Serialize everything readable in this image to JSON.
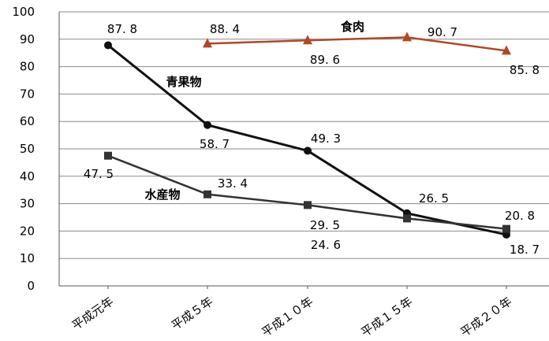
{
  "chart_data": {
    "type": "line",
    "categories": [
      "平成元年",
      "平成５年",
      "平成１０年",
      "平成１５年",
      "平成２０年"
    ],
    "ylim": [
      0,
      100
    ],
    "yticks": [
      0,
      10,
      20,
      30,
      40,
      50,
      60,
      70,
      80,
      90,
      100
    ],
    "grid": true,
    "series": [
      {
        "name": "青果物",
        "values": [
          87.8,
          58.7,
          49.3,
          26.5,
          18.7
        ],
        "labels": [
          "87. 8",
          "58. 7",
          "49. 3",
          "26. 5",
          "18. 7"
        ],
        "color": "#111111",
        "marker": "circle"
      },
      {
        "name": "水産物",
        "values": [
          47.5,
          33.4,
          29.5,
          24.6,
          20.8
        ],
        "labels": [
          "47. 5",
          "33. 4",
          "29. 5",
          "24. 6",
          "20. 8"
        ],
        "color": "#333333",
        "marker": "square"
      },
      {
        "name": "食肉",
        "values": [
          null,
          88.4,
          89.6,
          90.7,
          85.8
        ],
        "labels": [
          null,
          "88. 4",
          "89. 6",
          "90. 7",
          "85. 8"
        ],
        "color": "#b34726",
        "marker": "triangle"
      }
    ]
  }
}
